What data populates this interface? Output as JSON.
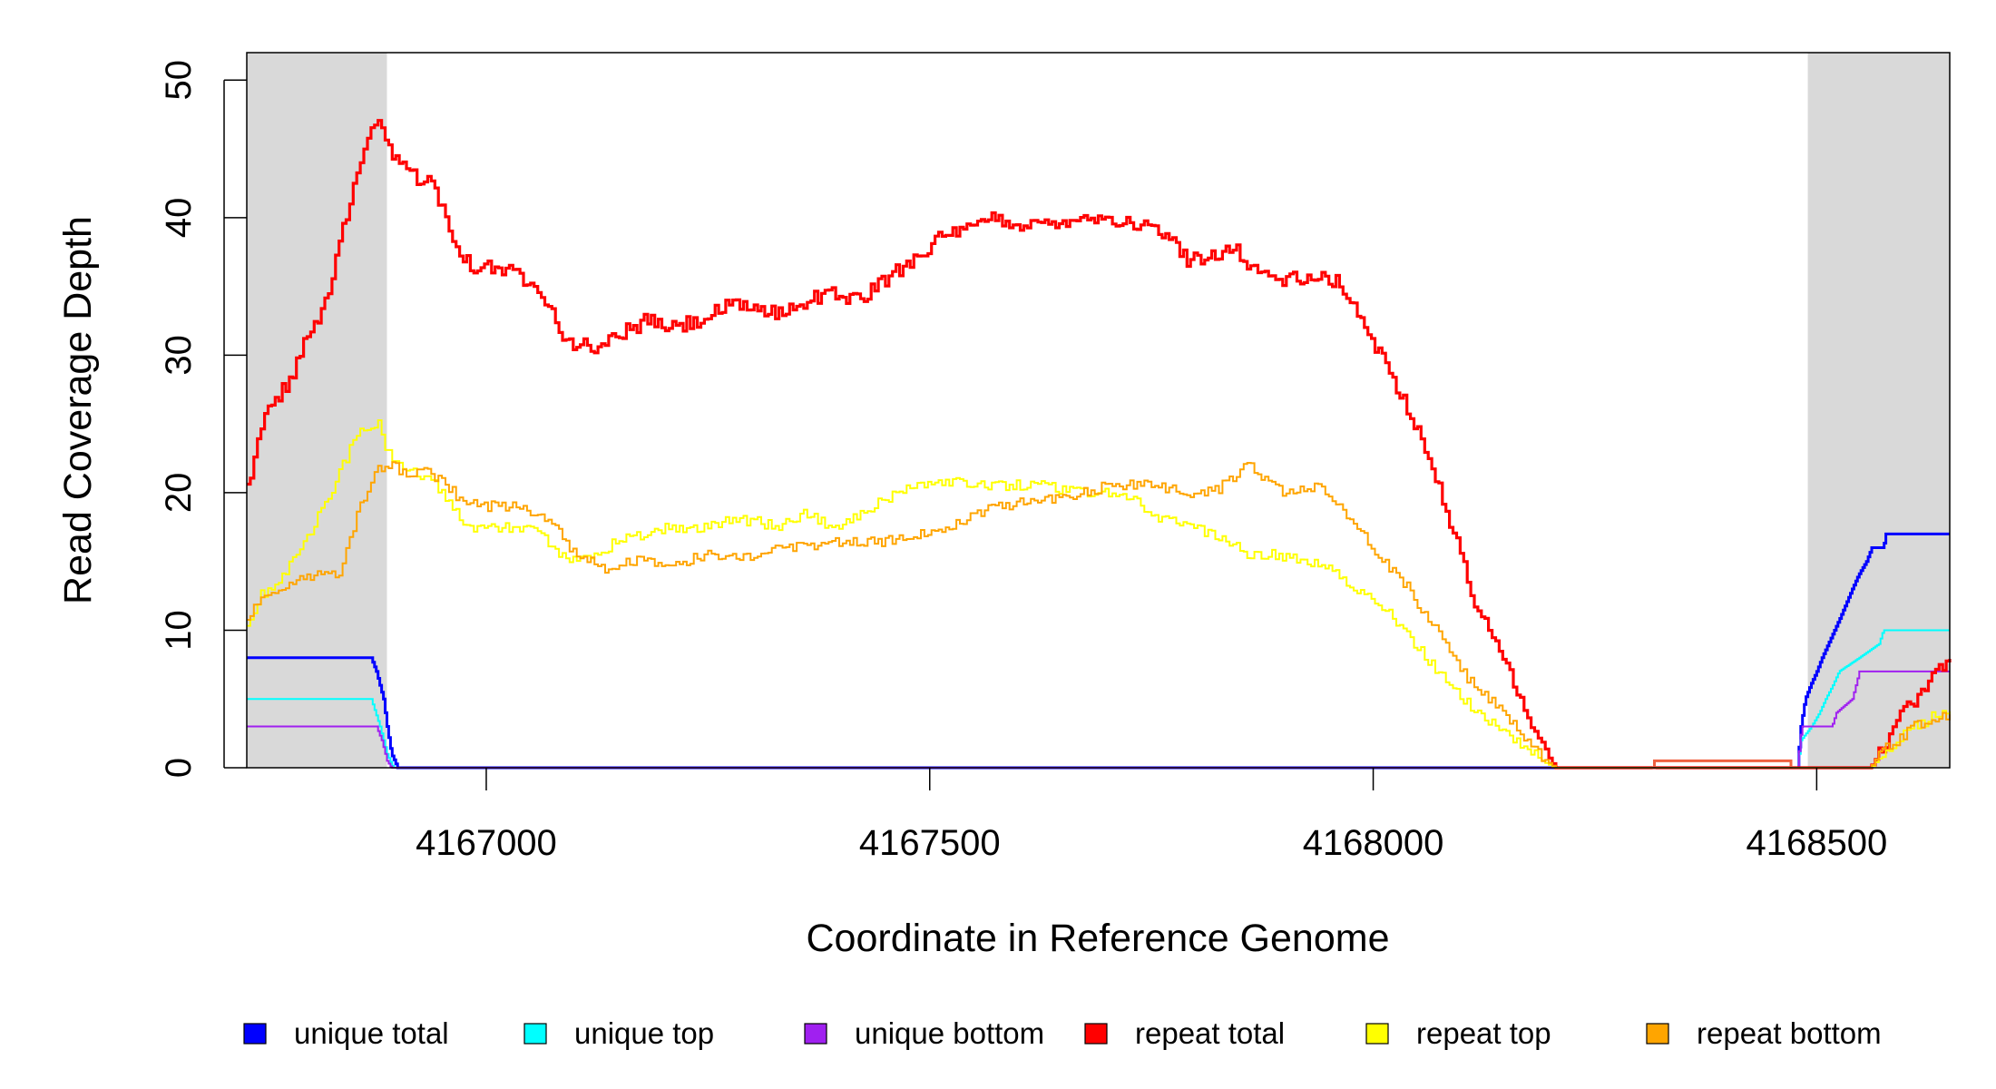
{
  "chart_data": {
    "type": "line",
    "xlabel": "Coordinate in Reference Genome",
    "ylabel": "Read Coverage Depth",
    "xlim": [
      4166730,
      4168650
    ],
    "ylim": [
      0,
      52
    ],
    "x_ticks": [
      4167000,
      4167500,
      4168000,
      4168500
    ],
    "x_tick_labels": [
      "4167000",
      "4167500",
      "4168000",
      "4168500"
    ],
    "y_ticks": [
      0,
      10,
      20,
      30,
      40,
      50
    ],
    "y_tick_labels": [
      "0",
      "10",
      "20",
      "30",
      "40",
      "50"
    ],
    "shaded_regions": [
      [
        4166730,
        4166888
      ],
      [
        4168490,
        4168650
      ]
    ],
    "legend_position": "bottom",
    "series": [
      {
        "name": "unique total",
        "color": "#0000FF",
        "points": [
          [
            4166730,
            8
          ],
          [
            4166870,
            8
          ],
          [
            4166876,
            7
          ],
          [
            4166880,
            6
          ],
          [
            4166884,
            5
          ],
          [
            4166888,
            3
          ],
          [
            4166893,
            1
          ],
          [
            4166900,
            0
          ],
          [
            4168478,
            0
          ],
          [
            4168482,
            3
          ],
          [
            4168487,
            5
          ],
          [
            4168493,
            6
          ],
          [
            4168500,
            7
          ],
          [
            4168506,
            8
          ],
          [
            4168513,
            9
          ],
          [
            4168520,
            10
          ],
          [
            4168527,
            11
          ],
          [
            4168540,
            13
          ],
          [
            4168547,
            14
          ],
          [
            4168556,
            15
          ],
          [
            4168562,
            16
          ],
          [
            4168575,
            16
          ],
          [
            4168578,
            17
          ],
          [
            4168650,
            17
          ]
        ]
      },
      {
        "name": "unique top",
        "color": "#00FFFF",
        "points": [
          [
            4166730,
            5
          ],
          [
            4166870,
            5
          ],
          [
            4166880,
            3
          ],
          [
            4166888,
            1
          ],
          [
            4166895,
            0
          ],
          [
            4168478,
            0
          ],
          [
            4168482,
            2
          ],
          [
            4168494,
            3
          ],
          [
            4168503,
            4
          ],
          [
            4168510,
            5
          ],
          [
            4168518,
            6
          ],
          [
            4168525,
            7
          ],
          [
            4168548,
            8
          ],
          [
            4168570,
            9
          ],
          [
            4168575,
            10
          ],
          [
            4168650,
            10
          ]
        ]
      },
      {
        "name": "unique bottom",
        "color": "#A020F0",
        "points": [
          [
            4166730,
            3
          ],
          [
            4166876,
            3
          ],
          [
            4166882,
            2
          ],
          [
            4166888,
            0.5
          ],
          [
            4166893,
            0
          ],
          [
            4168478,
            0
          ],
          [
            4168483,
            3
          ],
          [
            4168517,
            3
          ],
          [
            4168522,
            4
          ],
          [
            4168540,
            5
          ],
          [
            4168544,
            6
          ],
          [
            4168548,
            7
          ],
          [
            4168650,
            7
          ]
        ]
      },
      {
        "name": "repeat total",
        "color": "#FF0000",
        "points": [
          [
            4166730,
            20.5
          ],
          [
            4166740,
            23
          ],
          [
            4166750,
            25.5
          ],
          [
            4166765,
            27
          ],
          [
            4166780,
            28.5
          ],
          [
            4166795,
            31
          ],
          [
            4166815,
            33
          ],
          [
            4166830,
            37
          ],
          [
            4166845,
            41
          ],
          [
            4166858,
            44
          ],
          [
            4166870,
            46
          ],
          [
            4166878,
            47
          ],
          [
            4166888,
            45
          ],
          [
            4166900,
            44
          ],
          [
            4166920,
            43
          ],
          [
            4166940,
            42.5
          ],
          [
            4166960,
            39
          ],
          [
            4166980,
            36.5
          ],
          [
            4167000,
            36.5
          ],
          [
            4167030,
            36
          ],
          [
            4167060,
            35
          ],
          [
            4167090,
            31
          ],
          [
            4167120,
            30.5
          ],
          [
            4167150,
            31.5
          ],
          [
            4167180,
            32.5
          ],
          [
            4167210,
            32
          ],
          [
            4167240,
            32.5
          ],
          [
            4167270,
            33.5
          ],
          [
            4167300,
            33.5
          ],
          [
            4167330,
            33
          ],
          [
            4167360,
            34
          ],
          [
            4167390,
            34.5
          ],
          [
            4167420,
            34
          ],
          [
            4167450,
            35.5
          ],
          [
            4167480,
            37
          ],
          [
            4167510,
            38.5
          ],
          [
            4167540,
            39
          ],
          [
            4167570,
            40
          ],
          [
            4167600,
            39.5
          ],
          [
            4167630,
            39.5
          ],
          [
            4167660,
            40
          ],
          [
            4167700,
            40
          ],
          [
            4167730,
            39.5
          ],
          [
            4167760,
            39
          ],
          [
            4167790,
            37
          ],
          [
            4167810,
            37
          ],
          [
            4167840,
            38
          ],
          [
            4167860,
            36.5
          ],
          [
            4167890,
            35.5
          ],
          [
            4167920,
            35.5
          ],
          [
            4167940,
            35.5
          ],
          [
            4167960,
            35.5
          ],
          [
            4167980,
            33
          ],
          [
            4168000,
            31
          ],
          [
            4168020,
            28.5
          ],
          [
            4168040,
            26
          ],
          [
            4168060,
            23
          ],
          [
            4168080,
            19
          ],
          [
            4168100,
            15
          ],
          [
            4168120,
            11
          ],
          [
            4168140,
            9
          ],
          [
            4168160,
            6
          ],
          [
            4168180,
            3
          ],
          [
            4168195,
            1
          ],
          [
            4168205,
            0
          ],
          [
            4168230,
            0
          ],
          [
            4168300,
            0
          ],
          [
            4168560,
            0
          ],
          [
            4168575,
            1.5
          ],
          [
            4168590,
            3.5
          ],
          [
            4168610,
            5
          ],
          [
            4168625,
            6
          ],
          [
            4168640,
            7.5
          ],
          [
            4168650,
            8
          ]
        ]
      },
      {
        "name": "repeat top",
        "color": "#FFFF00",
        "points": [
          [
            4166730,
            10
          ],
          [
            4166745,
            12.5
          ],
          [
            4166770,
            14
          ],
          [
            4166800,
            17
          ],
          [
            4166825,
            20
          ],
          [
            4166845,
            23
          ],
          [
            4166860,
            24.5
          ],
          [
            4166878,
            25
          ],
          [
            4166888,
            23
          ],
          [
            4166900,
            22
          ],
          [
            4166920,
            21.5
          ],
          [
            4166940,
            21
          ],
          [
            4166960,
            19
          ],
          [
            4166980,
            17.5
          ],
          [
            4167000,
            17.5
          ],
          [
            4167030,
            17.5
          ],
          [
            4167060,
            17
          ],
          [
            4167090,
            15
          ],
          [
            4167120,
            15.5
          ],
          [
            4167150,
            16.5
          ],
          [
            4167180,
            17
          ],
          [
            4167210,
            17.5
          ],
          [
            4167240,
            17.5
          ],
          [
            4167270,
            18
          ],
          [
            4167300,
            18
          ],
          [
            4167330,
            17.5
          ],
          [
            4167360,
            18.5
          ],
          [
            4167390,
            17.5
          ],
          [
            4167420,
            18.5
          ],
          [
            4167450,
            19.5
          ],
          [
            4167480,
            20.5
          ],
          [
            4167510,
            21
          ],
          [
            4167540,
            20.5
          ],
          [
            4167570,
            20.5
          ],
          [
            4167600,
            20.5
          ],
          [
            4167630,
            20.5
          ],
          [
            4167660,
            20
          ],
          [
            4167700,
            20
          ],
          [
            4167730,
            19.5
          ],
          [
            4167760,
            18
          ],
          [
            4167790,
            18
          ],
          [
            4167810,
            17
          ],
          [
            4167840,
            16.5
          ],
          [
            4167860,
            15.5
          ],
          [
            4167890,
            15.5
          ],
          [
            4167920,
            15
          ],
          [
            4167940,
            15
          ],
          [
            4167960,
            14
          ],
          [
            4167980,
            13
          ],
          [
            4168000,
            12
          ],
          [
            4168020,
            11
          ],
          [
            4168040,
            9.5
          ],
          [
            4168060,
            8
          ],
          [
            4168080,
            6.5
          ],
          [
            4168100,
            5
          ],
          [
            4168120,
            4
          ],
          [
            4168140,
            3
          ],
          [
            4168160,
            2
          ],
          [
            4168180,
            1
          ],
          [
            4168195,
            0.3
          ],
          [
            4168205,
            0
          ],
          [
            4168230,
            0
          ],
          [
            4168300,
            0
          ],
          [
            4168560,
            0
          ],
          [
            4168575,
            1
          ],
          [
            4168590,
            2
          ],
          [
            4168610,
            3
          ],
          [
            4168625,
            3.5
          ],
          [
            4168640,
            4
          ],
          [
            4168650,
            4.3
          ]
        ]
      },
      {
        "name": "repeat bottom",
        "color": "#FFA500",
        "points": [
          [
            4166730,
            11
          ],
          [
            4166750,
            12.5
          ],
          [
            4166780,
            13.5
          ],
          [
            4166810,
            14
          ],
          [
            4166835,
            14
          ],
          [
            4166848,
            17
          ],
          [
            4166860,
            19.5
          ],
          [
            4166875,
            21.5
          ],
          [
            4166890,
            22
          ],
          [
            4166910,
            21.5
          ],
          [
            4166930,
            21.5
          ],
          [
            4166950,
            21
          ],
          [
            4166970,
            19.5
          ],
          [
            4166990,
            19
          ],
          [
            4167010,
            19
          ],
          [
            4167040,
            19
          ],
          [
            4167060,
            18.5
          ],
          [
            4167080,
            17.5
          ],
          [
            4167100,
            15.5
          ],
          [
            4167130,
            14.5
          ],
          [
            4167160,
            15
          ],
          [
            4167190,
            15
          ],
          [
            4167220,
            15
          ],
          [
            4167250,
            15.5
          ],
          [
            4167280,
            15.5
          ],
          [
            4167310,
            15.5
          ],
          [
            4167340,
            16
          ],
          [
            4167370,
            16
          ],
          [
            4167400,
            16.5
          ],
          [
            4167430,
            16.5
          ],
          [
            4167460,
            16.5
          ],
          [
            4167490,
            17
          ],
          [
            4167520,
            17.5
          ],
          [
            4167550,
            18.5
          ],
          [
            4167580,
            19
          ],
          [
            4167610,
            19.5
          ],
          [
            4167640,
            19.5
          ],
          [
            4167670,
            20
          ],
          [
            4167700,
            20.5
          ],
          [
            4167730,
            20.5
          ],
          [
            4167760,
            20.5
          ],
          [
            4167790,
            20
          ],
          [
            4167820,
            20
          ],
          [
            4167840,
            21
          ],
          [
            4167860,
            22
          ],
          [
            4167880,
            21
          ],
          [
            4167900,
            20
          ],
          [
            4167920,
            20.5
          ],
          [
            4167940,
            20.5
          ],
          [
            4167960,
            19
          ],
          [
            4167980,
            17.5
          ],
          [
            4168000,
            16
          ],
          [
            4168020,
            14.5
          ],
          [
            4168040,
            13
          ],
          [
            4168060,
            11
          ],
          [
            4168080,
            9
          ],
          [
            4168100,
            7
          ],
          [
            4168120,
            5.5
          ],
          [
            4168140,
            4.5
          ],
          [
            4168160,
            3
          ],
          [
            4168180,
            1.5
          ],
          [
            4168195,
            0.5
          ],
          [
            4168205,
            0
          ],
          [
            4168560,
            0
          ],
          [
            4168575,
            1.5
          ],
          [
            4168590,
            2
          ],
          [
            4168610,
            3
          ],
          [
            4168630,
            3.5
          ],
          [
            4168650,
            4
          ]
        ]
      },
      {
        "name": "",
        "color": "#F06040",
        "points": [
          [
            4168315,
            0
          ],
          [
            4168316,
            0.5
          ],
          [
            4168470,
            0.5
          ],
          [
            4168471,
            0
          ]
        ]
      }
    ]
  }
}
